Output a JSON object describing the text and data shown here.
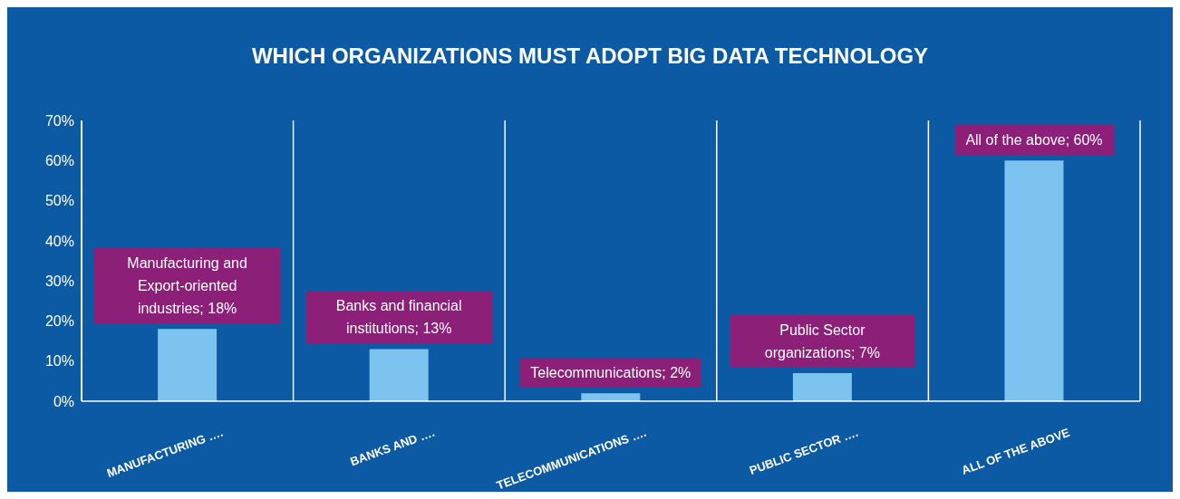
{
  "chart_data": {
    "type": "bar",
    "title": "WHICH ORGANIZATIONS MUST ADOPT BIG DATA TECHNOLOGY",
    "categories": [
      "MANUFACTURING ….",
      "BANKS AND ….",
      "TELECOMMUNICATIONS ….",
      "PUBLIC SECTOR ….",
      "ALL OF THE ABOVE"
    ],
    "values": [
      18,
      13,
      2,
      7,
      60
    ],
    "color": "#7cc3ef",
    "value_labels": [
      "Manufacturing and Export-oriented industries; 18%",
      "Banks and financial institutions; 13%",
      "Telecommunications; 2%",
      "Public Sector organizations; 7%",
      "All of the above; 60%"
    ],
    "ylim": [
      0,
      70
    ],
    "yticks": [
      {
        "value": 0,
        "label": "0%"
      },
      {
        "value": 10,
        "label": "10%"
      },
      {
        "value": 20,
        "label": "20%"
      },
      {
        "value": 30,
        "label": "30%"
      },
      {
        "value": 40,
        "label": "40%"
      },
      {
        "value": 50,
        "label": "50%"
      },
      {
        "value": 60,
        "label": "60%"
      },
      {
        "value": 70,
        "label": "70%"
      }
    ],
    "grid": "x",
    "legend": false
  }
}
